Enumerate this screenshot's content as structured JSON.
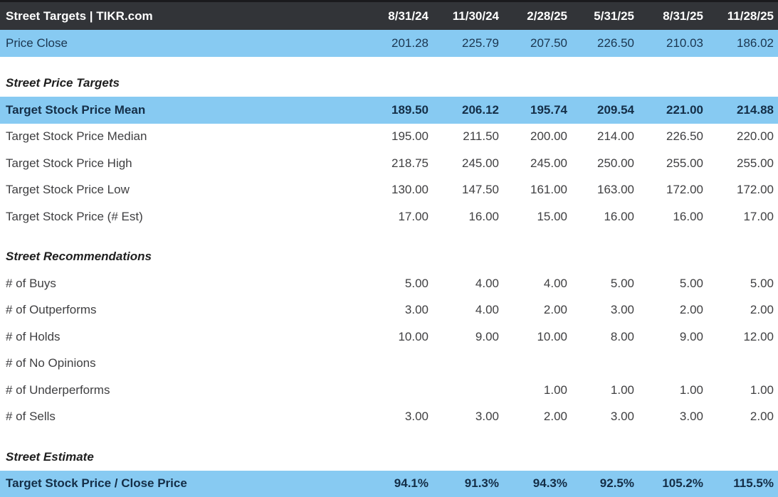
{
  "header": {
    "title": "Street Targets | TIKR.com",
    "columns": [
      "8/31/24",
      "11/30/24",
      "2/28/25",
      "5/31/25",
      "8/31/25",
      "11/28/25"
    ]
  },
  "colors": {
    "header_bg": "#323438",
    "header_text": "#FFFFFF",
    "highlight_bg": "#87CAF2",
    "highlight_text": "#1B3650",
    "highlight_bold_text": "#142E47",
    "row_text": "#3F3F41",
    "section_text": "#1F1F1F"
  },
  "rows": [
    {
      "label": "Price Close",
      "style": "highlight",
      "values": [
        "201.28",
        "225.79",
        "207.50",
        "226.50",
        "210.03",
        "186.02"
      ]
    },
    {
      "style": "spacer"
    },
    {
      "label": "Street Price Targets",
      "style": "section",
      "values": [
        "",
        "",
        "",
        "",
        "",
        ""
      ]
    },
    {
      "label": "Target Stock Price Mean",
      "style": "highlight_bold",
      "values": [
        "189.50",
        "206.12",
        "195.74",
        "209.54",
        "221.00",
        "214.88"
      ]
    },
    {
      "label": "Target Stock Price Median",
      "style": "plain",
      "values": [
        "195.00",
        "211.50",
        "200.00",
        "214.00",
        "226.50",
        "220.00"
      ]
    },
    {
      "label": "Target Stock Price High",
      "style": "plain",
      "values": [
        "218.75",
        "245.00",
        "245.00",
        "250.00",
        "255.00",
        "255.00"
      ]
    },
    {
      "label": "Target Stock Price Low",
      "style": "plain",
      "values": [
        "130.00",
        "147.50",
        "161.00",
        "163.00",
        "172.00",
        "172.00"
      ]
    },
    {
      "label": "Target Stock Price (# Est)",
      "style": "plain",
      "values": [
        "17.00",
        "16.00",
        "15.00",
        "16.00",
        "16.00",
        "17.00"
      ]
    },
    {
      "style": "spacer"
    },
    {
      "label": "Street Recommendations",
      "style": "section",
      "values": [
        "",
        "",
        "",
        "",
        "",
        ""
      ]
    },
    {
      "label": "# of Buys",
      "style": "plain",
      "values": [
        "5.00",
        "4.00",
        "4.00",
        "5.00",
        "5.00",
        "5.00"
      ]
    },
    {
      "label": "# of Outperforms",
      "style": "plain",
      "values": [
        "3.00",
        "4.00",
        "2.00",
        "3.00",
        "2.00",
        "2.00"
      ]
    },
    {
      "label": "# of Holds",
      "style": "plain",
      "values": [
        "10.00",
        "9.00",
        "10.00",
        "8.00",
        "9.00",
        "12.00"
      ]
    },
    {
      "label": "# of No Opinions",
      "style": "plain",
      "values": [
        "",
        "",
        "",
        "",
        "",
        ""
      ]
    },
    {
      "label": "# of Underperforms",
      "style": "plain",
      "values": [
        "",
        "",
        "1.00",
        "1.00",
        "1.00",
        "1.00"
      ]
    },
    {
      "label": "# of Sells",
      "style": "plain",
      "values": [
        "3.00",
        "3.00",
        "2.00",
        "3.00",
        "3.00",
        "2.00"
      ]
    },
    {
      "style": "spacer"
    },
    {
      "label": "Street Estimate",
      "style": "section",
      "values": [
        "",
        "",
        "",
        "",
        "",
        ""
      ]
    },
    {
      "label": "Target Stock Price / Close Price",
      "style": "highlight_bold",
      "values": [
        "94.1%",
        "91.3%",
        "94.3%",
        "92.5%",
        "105.2%",
        "115.5%"
      ]
    }
  ]
}
